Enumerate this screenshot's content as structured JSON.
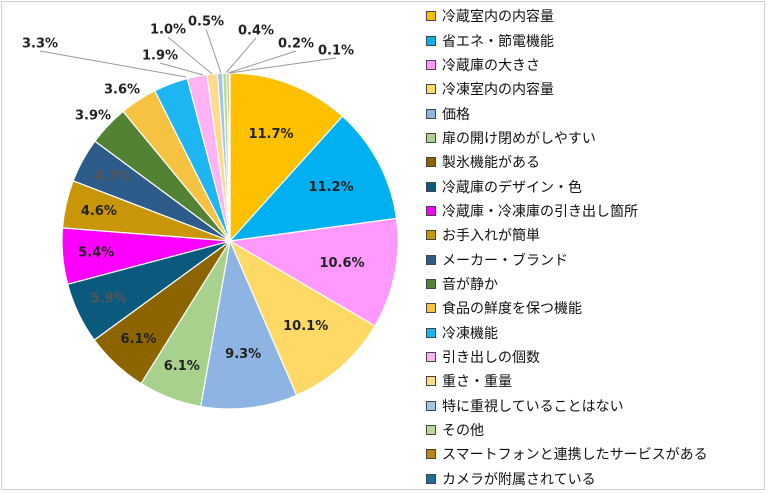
{
  "chart_data": {
    "type": "pie",
    "title": "",
    "categories": [
      "冷蔵室内の内容量",
      "省エネ・節電機能",
      "冷蔵庫の大きさ",
      "冷凍室内の内容量",
      "価格",
      "扉の開け閉めがしやすい",
      "製氷機能がある",
      "冷蔵庫のデザイン・色",
      "冷蔵庫・冷凍庫の引き出し箇所",
      "お手入れが簡単",
      "メーカー・ブランド",
      "音が静か",
      "食品の鮮度を保つ機能",
      "冷凍機能",
      "引き出しの個数",
      "重さ・重量",
      "特に重視していることはない",
      "その他",
      "スマートフォンと連携したサービスがある",
      "カメラが附属されている"
    ],
    "values": [
      11.7,
      11.2,
      10.6,
      10.1,
      9.3,
      6.1,
      6.1,
      5.9,
      5.4,
      4.6,
      4.3,
      3.9,
      3.6,
      3.3,
      1.9,
      1.0,
      0.5,
      0.4,
      0.2,
      0.1
    ],
    "data_labels": [
      "11.7%",
      "11.2%",
      "10.6%",
      "10.1%",
      "9.3%",
      "6.1%",
      "6.1%",
      "5.9%",
      "5.4%",
      "4.6%",
      "4.3%",
      "3.9%",
      "3.6%",
      "3.3%",
      "1.9%",
      "1.0%",
      "0.5%",
      "0.4%",
      "0.2%",
      "0.1%"
    ],
    "colors": [
      "#FFC000",
      "#00B0F0",
      "#FF99FF",
      "#FFD966",
      "#8EB4E3",
      "#A9D18E",
      "#8C6500",
      "#0B5A7E",
      "#FF00FF",
      "#C9960A",
      "#2E5C8A",
      "#548235",
      "#F5C242",
      "#1EB6F2",
      "#FFB3F5",
      "#FFD98C",
      "#A3C4E8",
      "#B6DB99",
      "#B8860B",
      "#1F6E9C"
    ],
    "label_colors": [
      "#222222",
      "#222222",
      "#222222",
      "#222222",
      "#222222",
      "#222222",
      "#222222",
      "#555555",
      "#222222",
      "#222222",
      "#555555",
      "#222222",
      "#222222",
      "#222222",
      "#222222",
      "#222222",
      "#222222",
      "#222222",
      "#222222",
      "#222222"
    ],
    "legend_position": "right",
    "start_angle": "12 o'clock, clockwise"
  }
}
